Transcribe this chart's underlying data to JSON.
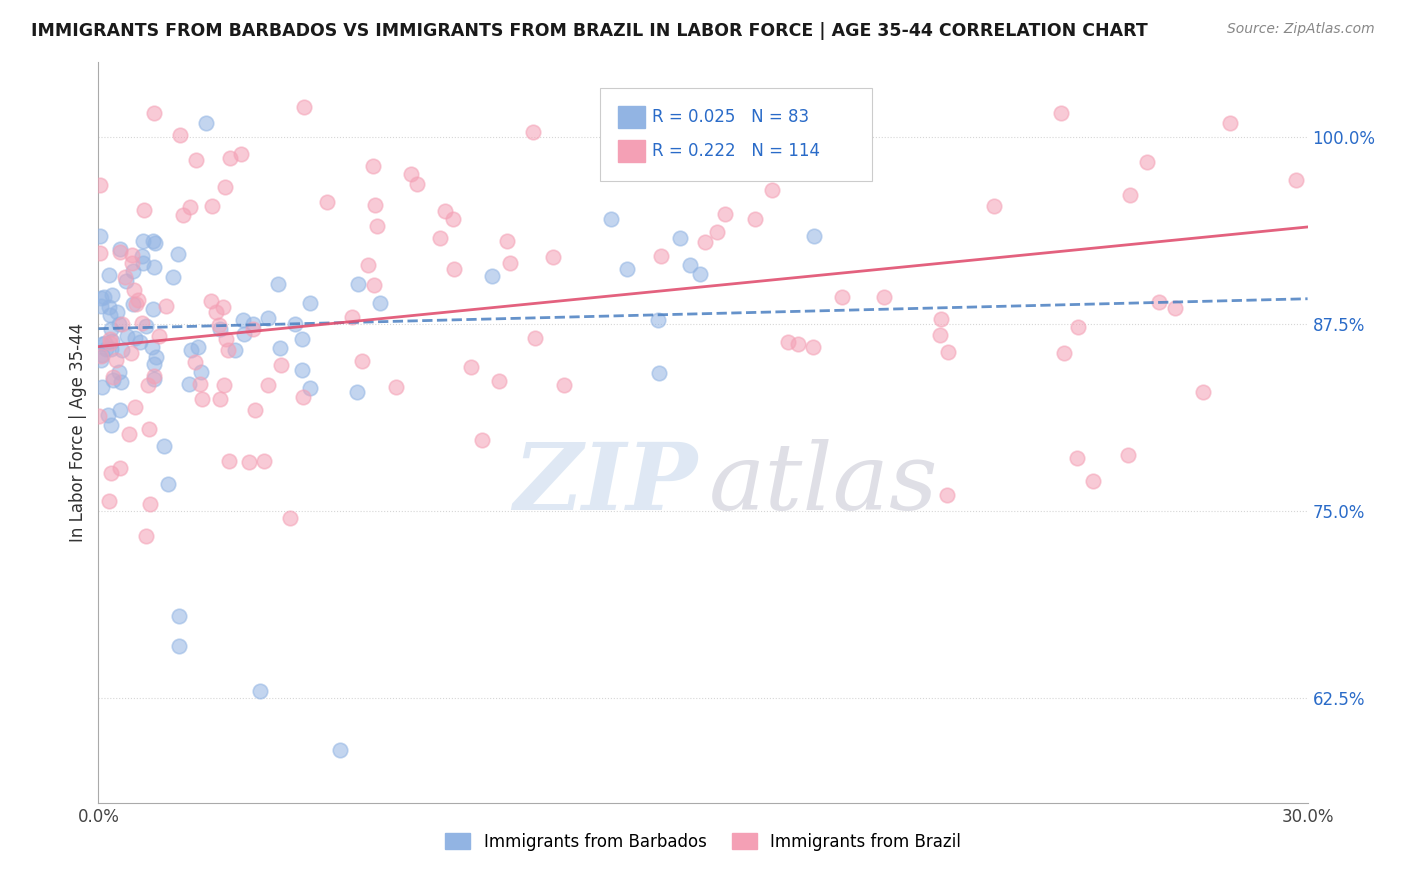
{
  "title": "IMMIGRANTS FROM BARBADOS VS IMMIGRANTS FROM BRAZIL IN LABOR FORCE | AGE 35-44 CORRELATION CHART",
  "source": "Source: ZipAtlas.com",
  "ylabel": "In Labor Force | Age 35-44",
  "ytick_labels": [
    "62.5%",
    "75.0%",
    "87.5%",
    "100.0%"
  ],
  "ytick_values": [
    0.625,
    0.75,
    0.875,
    1.0
  ],
  "xlim": [
    0.0,
    0.3
  ],
  "ylim": [
    0.555,
    1.05
  ],
  "barbados_R": 0.025,
  "barbados_N": 83,
  "brazil_R": 0.222,
  "brazil_N": 114,
  "barbados_color": "#92b4e3",
  "brazil_color": "#f4a0b5",
  "barbados_line_color": "#4a7fc1",
  "brazil_line_color": "#e05070",
  "legend_label_barbados": "Immigrants from Barbados",
  "legend_label_brazil": "Immigrants from Brazil",
  "background_color": "#ffffff",
  "grid_color": "#cccccc"
}
